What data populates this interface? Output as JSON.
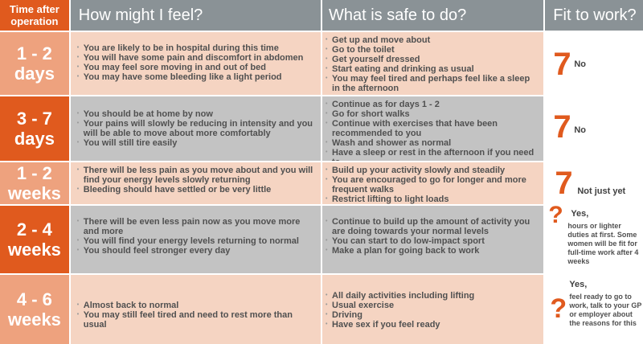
{
  "header": {
    "col0_line1": "Time after",
    "col0_line2": "operation",
    "col1": "How might I feel?",
    "col2": "What is safe to do?",
    "col3": "Fit to work?"
  },
  "colors": {
    "orange_dark": "#e05a1e",
    "orange_light": "#eea27e",
    "header_grey": "#8a9296",
    "peach": "#f5d4c2",
    "grey": "#c3c3c3"
  },
  "rows": [
    {
      "stage_num": "1 - 2",
      "stage_unit": "days",
      "feel": [
        "You are likely to be in hospital during this time",
        "You will have some pain and discomfort in abdomen",
        "You may feel sore moving in and out of bed",
        "You may have some bleeding like a light period"
      ],
      "safe": [
        "Get up and move about",
        "Go to the toilet",
        "Get yourself dressed",
        "Start eating and drinking as usual",
        "You may feel tired and perhaps feel like a sleep in the afternoon"
      ],
      "fit_number": "7",
      "fit_label": "No"
    },
    {
      "stage_num": "3 - 7",
      "stage_unit": "days",
      "feel": [
        "You should be at home by now",
        "Your pains will slowly be reducing in intensity and you will be able to move about more comfortably",
        "You will still tire easily"
      ],
      "safe": [
        "Continue as for days 1 - 2",
        "Go for short walks",
        "Continue with exercises that have been recommended to you",
        "Wash and shower as normal",
        "Have a sleep or rest in the afternoon if you need to"
      ],
      "fit_number": "7",
      "fit_label": "No"
    },
    {
      "stage_num": "1 - 2",
      "stage_unit": "weeks",
      "feel": [
        "There will be less pain as you move about and you will find your energy levels slowly returning",
        "Bleeding should have settled or be very little"
      ],
      "safe": [
        "Build up your activity slowly and steadily",
        "You are encouraged to go for longer and more frequent walks",
        "Restrict lifting to light loads"
      ],
      "fit_number": "7",
      "fit_label": "Not just yet"
    },
    {
      "stage_num": "2 - 4",
      "stage_unit": "weeks",
      "feel": [
        "There will be even less pain now as you move more and more",
        "You will find your energy levels returning to normal",
        "You should feel stronger every day"
      ],
      "safe": [
        "Continue to build up the amount of activity you are doing towards your normal levels",
        "You can start to do low-impact sport",
        "Make a plan for going back to work"
      ],
      "fit_number": "?",
      "fit_label": "Yes,",
      "fit_note": "hours or lighter duties at first. Some women will be fit for full-time work after 4 weeks"
    },
    {
      "stage_num": "4 - 6",
      "stage_unit": "weeks",
      "feel": [
        "Almost back to normal",
        "You may still feel tired and need to rest more than usual"
      ],
      "safe": [
        "All daily activities including lifting",
        "Usual exercise",
        "Driving",
        "Have sex if you feel ready"
      ],
      "fit_number": "?",
      "fit_label": "Yes,",
      "fit_note": "feel ready to go to work, talk to your GP or employer about the reasons for this"
    }
  ]
}
